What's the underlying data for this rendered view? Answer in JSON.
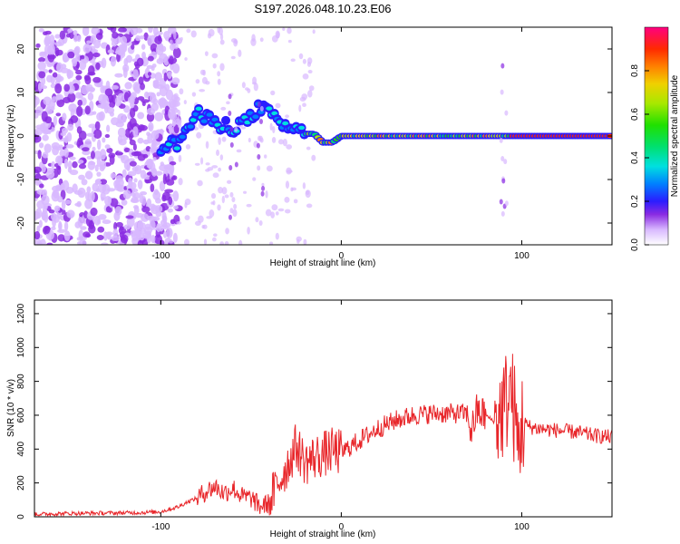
{
  "chart_data": [
    {
      "type": "heatmap",
      "title": "S197.2026.048.10.23.E06",
      "xlabel": "Height of straight line (km)",
      "ylabel": "Frequency (Hz)",
      "xlim": [
        -170,
        150
      ],
      "ylim": [
        -25,
        25
      ],
      "xticks": [
        -100,
        0,
        100
      ],
      "xtick_labels": [
        "-100",
        "0",
        "100"
      ],
      "yticks": [
        -20,
        -10,
        0,
        10,
        20
      ],
      "ytick_labels": [
        "-20",
        "-10",
        "0",
        "10",
        "20"
      ],
      "colorbar": {
        "label": "Normalized spectral amplitude",
        "range": [
          0,
          1
        ],
        "ticks": [
          0.0,
          0.2,
          0.4,
          0.6,
          0.8
        ],
        "tick_labels": [
          "0.0",
          "0.2",
          "0.4",
          "0.6",
          "0.8"
        ]
      },
      "ridge": {
        "description_points": [
          [
            -100,
            -2.5
          ],
          [
            -90,
            -1.5
          ],
          [
            -85,
            2
          ],
          [
            -80,
            5
          ],
          [
            -70,
            3
          ],
          [
            -60,
            2
          ],
          [
            -50,
            4
          ],
          [
            -45,
            7
          ],
          [
            -40,
            5
          ],
          [
            -35,
            3
          ],
          [
            -30,
            2
          ],
          [
            -20,
            0.5
          ],
          [
            -15,
            0.5
          ],
          [
            -10,
            -1.5
          ],
          [
            -5,
            -1.5
          ],
          [
            0,
            0
          ],
          [
            20,
            0
          ],
          [
            40,
            0
          ],
          [
            60,
            0
          ],
          [
            80,
            0
          ],
          [
            90,
            0
          ],
          [
            95,
            0
          ],
          [
            100,
            0
          ],
          [
            120,
            0
          ],
          [
            150,
            0
          ]
        ]
      }
    },
    {
      "type": "line",
      "title": "",
      "xlabel": "Height of straight line (km)",
      "ylabel": "SNR (10 * v/v)",
      "xlim": [
        -170,
        150
      ],
      "ylim": [
        0,
        1280
      ],
      "xticks": [
        -100,
        0,
        100
      ],
      "xtick_labels": [
        "-100",
        "0",
        "100"
      ],
      "yticks": [
        0,
        200,
        400,
        600,
        800,
        1000,
        1200
      ],
      "ytick_labels": [
        "0",
        "200",
        "400",
        "600",
        "800",
        "1000",
        "1200"
      ],
      "series": [
        {
          "name": "SNR",
          "color": "#e8262a",
          "x": [
            -170,
            -150,
            -130,
            -110,
            -100,
            -90,
            -85,
            -80,
            -75,
            -70,
            -65,
            -60,
            -55,
            -50,
            -45,
            -40,
            -35,
            -30,
            -25,
            -20,
            -15,
            -10,
            -5,
            0,
            10,
            20,
            30,
            40,
            50,
            60,
            70,
            72,
            75,
            80,
            85,
            88,
            90,
            92,
            94,
            96,
            98,
            100,
            102,
            105,
            110,
            120,
            130,
            140,
            150
          ],
          "values": [
            15,
            20,
            22,
            25,
            30,
            60,
            90,
            110,
            150,
            180,
            140,
            170,
            120,
            110,
            60,
            80,
            200,
            300,
            420,
            320,
            350,
            370,
            390,
            380,
            450,
            520,
            570,
            600,
            610,
            610,
            610,
            500,
            620,
            600,
            560,
            600,
            650,
            700,
            750,
            600,
            400,
            560,
            540,
            530,
            520,
            510,
            500,
            480,
            470
          ]
        }
      ]
    }
  ]
}
